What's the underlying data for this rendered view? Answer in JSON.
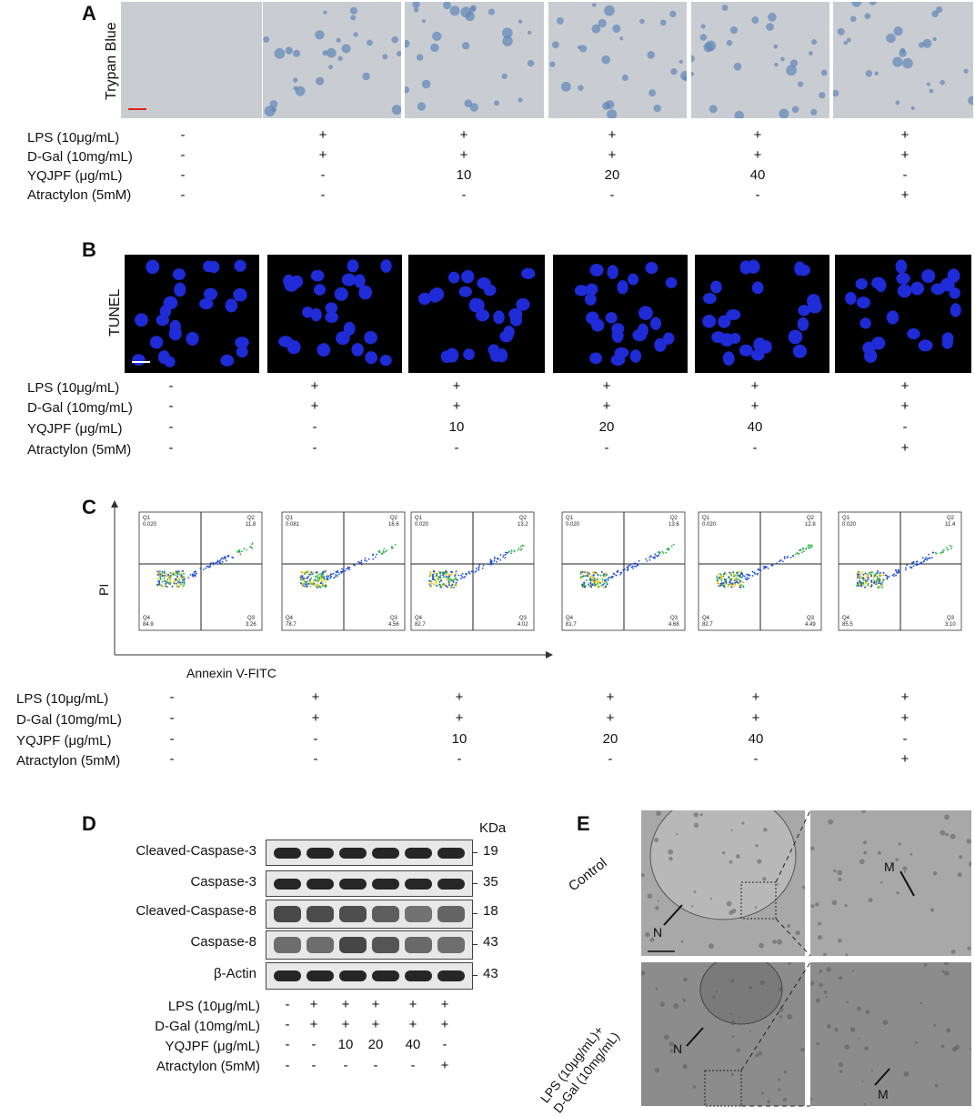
{
  "panels": {
    "A": {
      "letter": "A",
      "stain": "Trypan Blue"
    },
    "B": {
      "letter": "B",
      "stain": "TUNEL"
    },
    "C": {
      "letter": "C",
      "y_axis": "PI",
      "x_axis": "Annexin V-FITC",
      "plots": [
        {
          "q1": "0.020",
          "q2": "11.8",
          "q3": "3.26",
          "q4": "84.9"
        },
        {
          "q1": "0.081",
          "q2": "16.6",
          "q3": "4.56",
          "q4": "78.7"
        },
        {
          "q1": "0.020",
          "q2": "13.2",
          "q3": "4.02",
          "q4": "82.7"
        },
        {
          "q1": "0.020",
          "q2": "13.6",
          "q3": "4.68",
          "q4": "81.7"
        },
        {
          "q1": "0.020",
          "q2": "12.8",
          "q3": "4.49",
          "q4": "82.7"
        },
        {
          "q1": "0.020",
          "q2": "11.4",
          "q3": "3.10",
          "q4": "85.5"
        }
      ],
      "quad_names": [
        "Q1",
        "Q2",
        "Q3",
        "Q4"
      ]
    },
    "D": {
      "letter": "D",
      "kda_label": "KDa",
      "bands": [
        {
          "name": "Cleaved-Caspase-3",
          "kda": "19"
        },
        {
          "name": "Caspase-3",
          "kda": "35"
        },
        {
          "name": "Cleaved-Caspase-8",
          "kda": "18"
        },
        {
          "name": "Caspase-8",
          "kda": "43"
        },
        {
          "name": "β-Actin",
          "kda": "43"
        }
      ]
    },
    "E": {
      "letter": "E",
      "control": "Control",
      "treated": "LPS (10μg/mL)+\nD-Gal (10mg/mL)",
      "n": "N",
      "m": "M"
    }
  },
  "conditions": {
    "labels": [
      "LPS (10μg/mL)",
      "D-Gal (10mg/mL)",
      "YQJPF (μg/mL)",
      "Atractylon (5mM)"
    ],
    "values": [
      [
        "-",
        "+",
        "+",
        "+",
        "+",
        "+"
      ],
      [
        "-",
        "+",
        "+",
        "+",
        "+",
        "+"
      ],
      [
        "-",
        "-",
        "10",
        "20",
        "40",
        "-"
      ],
      [
        "-",
        "-",
        "-",
        "-",
        "-",
        "+"
      ]
    ]
  },
  "colors": {
    "trypan_bg": "#c9ccd1",
    "tunel_bg": "#000000",
    "nuclei": "#1f2bd6",
    "em_bg": "#9a9a9a"
  }
}
